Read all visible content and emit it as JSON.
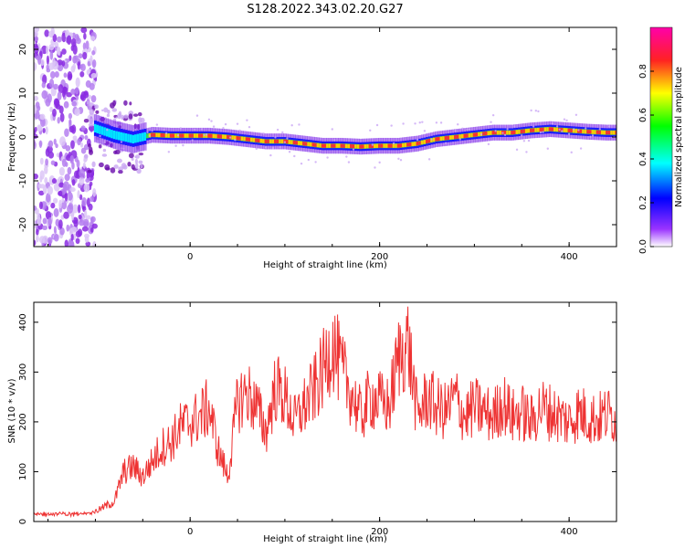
{
  "title": "S128.2022.343.02.20.G27",
  "chart_data": [
    {
      "type": "heatmap",
      "xlabel": "Height of straight line (km)",
      "ylabel": "Frequency (Hz)",
      "xlim": [
        -165,
        450
      ],
      "ylim": [
        -25,
        25
      ],
      "xticks": [
        0,
        200,
        400
      ],
      "yticks": [
        -20,
        -10,
        0,
        10,
        20
      ],
      "grid": false,
      "colorbar": {
        "label": "Normalized spectral amplitude",
        "range": [
          0,
          1
        ],
        "ticks": [
          0.0,
          0.2,
          0.4,
          0.6,
          0.8
        ],
        "tick_labels": [
          "0.0",
          "0.2",
          "0.4",
          "0.6",
          "0.8"
        ],
        "colormap": [
          "#ffffff",
          "#7a00ff",
          "#0000ff",
          "#00ffff",
          "#00ff00",
          "#ffff00",
          "#ff0000",
          "#ff00ff"
        ]
      },
      "ridge": {
        "x": [
          -100,
          -80,
          -60,
          -40,
          -20,
          0,
          20,
          40,
          60,
          80,
          100,
          120,
          140,
          160,
          180,
          200,
          220,
          240,
          260,
          280,
          300,
          320,
          340,
          360,
          380,
          400,
          420,
          440,
          450
        ],
        "y": [
          2.0,
          0.5,
          -0.5,
          0.5,
          0.3,
          0.3,
          0.3,
          0.0,
          -0.5,
          -1.0,
          -1.0,
          -1.5,
          -2.0,
          -2.0,
          -2.2,
          -2.0,
          -2.0,
          -1.5,
          -0.5,
          0.0,
          0.5,
          1.0,
          1.0,
          1.5,
          1.8,
          1.5,
          1.2,
          1.0,
          1.0
        ]
      },
      "noise_region_x": [
        -165,
        -100
      ]
    },
    {
      "type": "line",
      "xlabel": "Height of straight line (km)",
      "ylabel": "SNR (10 * v/v)",
      "xlim": [
        -165,
        450
      ],
      "ylim": [
        0,
        440
      ],
      "xticks": [
        0,
        200,
        400
      ],
      "yticks": [
        0,
        100,
        200,
        300,
        400
      ],
      "grid": false,
      "color": "#ee3333",
      "series": [
        {
          "x": [
            -165,
            -140,
            -120,
            -100,
            -80,
            -70,
            -60,
            -50,
            -40,
            -30,
            -20,
            -10,
            0,
            10,
            20,
            30,
            40,
            50,
            60,
            70,
            80,
            90,
            100,
            110,
            120,
            130,
            140,
            150,
            160,
            170,
            180,
            190,
            200,
            210,
            220,
            230,
            240,
            250,
            260,
            270,
            280,
            290,
            300,
            310,
            320,
            330,
            340,
            350,
            360,
            370,
            380,
            390,
            400,
            410,
            420,
            430,
            440,
            450
          ],
          "y": [
            15,
            15,
            15,
            20,
            40,
            100,
            110,
            90,
            120,
            150,
            160,
            190,
            200,
            210,
            230,
            140,
            90,
            240,
            260,
            230,
            180,
            270,
            250,
            200,
            230,
            260,
            300,
            360,
            300,
            260,
            210,
            250,
            240,
            230,
            330,
            360,
            210,
            250,
            230,
            220,
            250,
            210,
            230,
            220,
            210,
            240,
            210,
            220,
            200,
            230,
            220,
            210,
            200,
            220,
            210,
            205,
            215,
            210
          ]
        }
      ]
    }
  ]
}
